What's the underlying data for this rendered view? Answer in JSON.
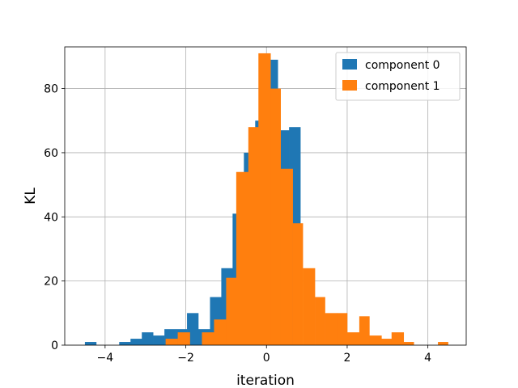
{
  "chart_data": {
    "type": "bar",
    "title": "",
    "xlabel": "iteration",
    "ylabel": "KL",
    "xlim": [
      -5.0,
      4.95
    ],
    "ylim": [
      0,
      93
    ],
    "xticks": [
      -4,
      -2,
      0,
      2,
      4
    ],
    "yticks": [
      0,
      20,
      40,
      60,
      80
    ],
    "grid": true,
    "legend_position": "top-right",
    "series": [
      {
        "name": "component 0",
        "color": "#1f77b4",
        "bins": [
          {
            "x0": -4.5,
            "x1": -4.22,
            "value": 1
          },
          {
            "x0": -3.65,
            "x1": -3.37,
            "value": 1
          },
          {
            "x0": -3.37,
            "x1": -3.09,
            "value": 2
          },
          {
            "x0": -3.09,
            "x1": -2.81,
            "value": 4
          },
          {
            "x0": -2.81,
            "x1": -2.53,
            "value": 3
          },
          {
            "x0": -2.53,
            "x1": -2.25,
            "value": 5
          },
          {
            "x0": -2.25,
            "x1": -1.97,
            "value": 5
          },
          {
            "x0": -1.97,
            "x1": -1.69,
            "value": 10
          },
          {
            "x0": -1.69,
            "x1": -1.4,
            "value": 5
          },
          {
            "x0": -1.4,
            "x1": -1.12,
            "value": 15
          },
          {
            "x0": -1.12,
            "x1": -0.84,
            "value": 24
          },
          {
            "x0": -0.84,
            "x1": -0.56,
            "value": 41
          },
          {
            "x0": -0.56,
            "x1": -0.28,
            "value": 60
          },
          {
            "x0": -0.28,
            "x1": 0.0,
            "value": 70
          },
          {
            "x0": 0.0,
            "x1": 0.28,
            "value": 89
          },
          {
            "x0": 0.28,
            "x1": 0.56,
            "value": 67
          },
          {
            "x0": 0.56,
            "x1": 0.84,
            "value": 68
          }
        ]
      },
      {
        "name": "component 1",
        "color": "#ff7f0e",
        "bins": [
          {
            "x0": -2.5,
            "x1": -2.2,
            "value": 2
          },
          {
            "x0": -2.2,
            "x1": -1.9,
            "value": 4
          },
          {
            "x0": -1.9,
            "x1": -1.6,
            "value": 0
          },
          {
            "x0": -1.6,
            "x1": -1.3,
            "value": 4
          },
          {
            "x0": -1.3,
            "x1": -1.0,
            "value": 8
          },
          {
            "x0": -1.0,
            "x1": -0.75,
            "value": 21
          },
          {
            "x0": -0.75,
            "x1": -0.45,
            "value": 54
          },
          {
            "x0": -0.45,
            "x1": -0.2,
            "value": 68
          },
          {
            "x0": -0.2,
            "x1": 0.1,
            "value": 91
          },
          {
            "x0": 0.1,
            "x1": 0.35,
            "value": 80
          },
          {
            "x0": 0.35,
            "x1": 0.65,
            "value": 55
          },
          {
            "x0": 0.65,
            "x1": 0.9,
            "value": 38
          },
          {
            "x0": 0.9,
            "x1": 1.2,
            "value": 24
          },
          {
            "x0": 1.2,
            "x1": 1.45,
            "value": 15
          },
          {
            "x0": 1.45,
            "x1": 1.75,
            "value": 10
          },
          {
            "x0": 1.75,
            "x1": 2.0,
            "value": 10
          },
          {
            "x0": 2.0,
            "x1": 2.3,
            "value": 4
          },
          {
            "x0": 2.3,
            "x1": 2.55,
            "value": 9
          },
          {
            "x0": 2.55,
            "x1": 2.85,
            "value": 3
          },
          {
            "x0": 2.85,
            "x1": 3.1,
            "value": 2
          },
          {
            "x0": 3.1,
            "x1": 3.4,
            "value": 4
          },
          {
            "x0": 3.4,
            "x1": 3.65,
            "value": 1
          },
          {
            "x0": 4.25,
            "x1": 4.5,
            "value": 1
          }
        ]
      }
    ]
  }
}
